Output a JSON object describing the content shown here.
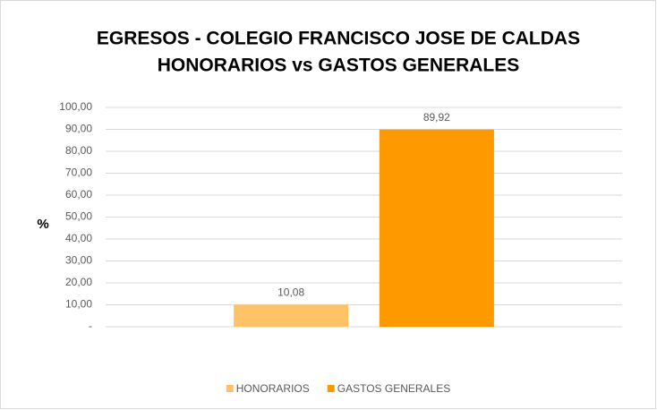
{
  "chart_data": {
    "type": "bar",
    "title": [
      "EGRESOS - COLEGIO FRANCISCO JOSE DE CALDAS",
      "HONORARIOS vs GASTOS GENERALES"
    ],
    "y_label": "%",
    "categories": [
      null
    ],
    "series": [
      {
        "name": "HONORARIOS",
        "color": "#ffc266",
        "values": [
          10.08
        ],
        "value_labels": [
          "10,08"
        ]
      },
      {
        "name": "GASTOS GENERALES",
        "color": "#ff9900",
        "values": [
          89.92
        ],
        "value_labels": [
          "89,92"
        ]
      }
    ],
    "ylim": [
      0,
      100
    ],
    "yticks": [
      {
        "value": 0,
        "label": "-"
      },
      {
        "value": 10,
        "label": "10,00"
      },
      {
        "value": 20,
        "label": "20,00"
      },
      {
        "value": 30,
        "label": "30,00"
      },
      {
        "value": 40,
        "label": "40,00"
      },
      {
        "value": 50,
        "label": "50,00"
      },
      {
        "value": 60,
        "label": "60,00"
      },
      {
        "value": 70,
        "label": "70,00"
      },
      {
        "value": 80,
        "label": "80,00"
      },
      {
        "value": 90,
        "label": "90,00"
      },
      {
        "value": 100,
        "label": "100,00"
      }
    ],
    "grid": true,
    "legend": "bottom"
  }
}
